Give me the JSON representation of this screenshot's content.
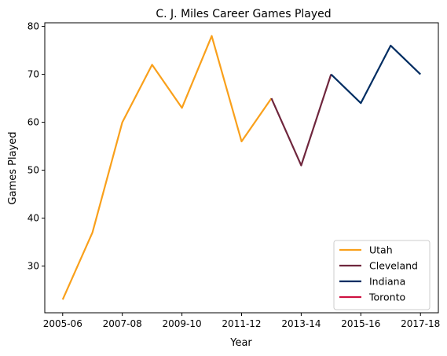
{
  "chart_data": {
    "type": "line",
    "title": "C. J. Miles Career Games Played",
    "xlabel": "Year",
    "ylabel": "Games Played",
    "ylim": [
      20.25,
      80.75
    ],
    "yticks": [
      30,
      40,
      50,
      60,
      70,
      80
    ],
    "x_categories": [
      "2005-06",
      "2006-07",
      "2007-08",
      "2008-09",
      "2009-10",
      "2010-11",
      "2011-12",
      "2012-13",
      "2013-14",
      "2014-15",
      "2015-16",
      "2016-17",
      "2017-18"
    ],
    "x_tick_labels": [
      "2005-06",
      "2007-08",
      "2009-10",
      "2011-12",
      "2013-14",
      "2015-16",
      "2017-18"
    ],
    "legend_position": "lower-right",
    "series": [
      {
        "name": "Utah",
        "color": "#F9A01B",
        "x": [
          "2005-06",
          "2006-07",
          "2007-08",
          "2008-09",
          "2009-10",
          "2010-11",
          "2011-12",
          "2012-13"
        ],
        "values": [
          23,
          37,
          60,
          72,
          63,
          78,
          56,
          65
        ]
      },
      {
        "name": "Cleveland",
        "color": "#6F263D",
        "x": [
          "2012-13",
          "2013-14",
          "2014-15"
        ],
        "values": [
          65,
          51,
          70
        ]
      },
      {
        "name": "Indiana",
        "color": "#002D62",
        "x": [
          "2014-15",
          "2015-16",
          "2016-17",
          "2017-18"
        ],
        "values": [
          70,
          64,
          76,
          70
        ]
      },
      {
        "name": "Toronto",
        "color": "#CE1141",
        "x": [],
        "values": []
      }
    ]
  }
}
